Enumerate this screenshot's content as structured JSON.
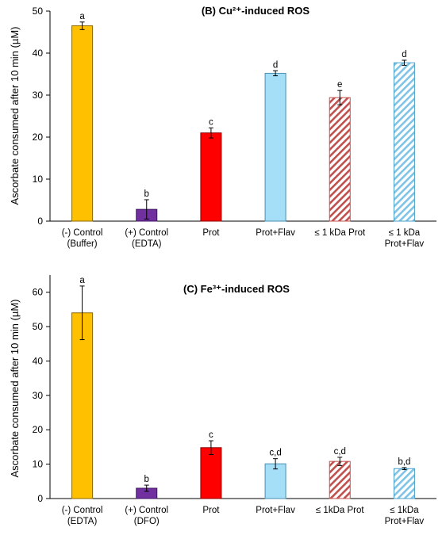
{
  "colors": {
    "gold": "#FFC000",
    "purple": "#7030A0",
    "red": "#FF0000",
    "lightblue": "#A5DEF7",
    "redhatch": "#C0504D",
    "bluehatch": "#7FC4E6"
  },
  "chart_data": [
    {
      "type": "bar",
      "title": "(B) Cu²⁺-induced ROS",
      "ylabel": "Ascorbate consumed after 10 min (µM)",
      "ylim": [
        0,
        50
      ],
      "yticks": [
        0,
        10,
        20,
        30,
        40,
        50
      ],
      "grid": false,
      "categories": [
        [
          "(-) Control",
          "(Buffer)"
        ],
        [
          "(+) Control",
          "(EDTA)"
        ],
        [
          "Prot"
        ],
        [
          "Prot+Flav"
        ],
        [
          "≤ 1 kDa Prot"
        ],
        [
          "≤  1 kDa",
          "Prot+Flav"
        ]
      ],
      "values": [
        46.5,
        2.8,
        21.0,
        35.2,
        29.4,
        37.7
      ],
      "errors": [
        0.9,
        2.3,
        1.2,
        0.6,
        1.7,
        0.6
      ],
      "significance": [
        "a",
        "b",
        "c",
        "d",
        "e",
        "d"
      ],
      "fills": [
        "gold",
        "purple",
        "red",
        "lightblue",
        "redhatch",
        "bluehatch"
      ]
    },
    {
      "type": "bar",
      "title": "(C) Fe³⁺-induced ROS",
      "ylabel": "Ascorbate consumed after 10 min (µM)",
      "ylim": [
        0,
        65
      ],
      "yticks": [
        0,
        10,
        20,
        30,
        40,
        50,
        60
      ],
      "grid": false,
      "categories": [
        [
          "(-) Control",
          "(EDTA)"
        ],
        [
          "(+) Control",
          "(DFO)"
        ],
        [
          "Prot"
        ],
        [
          "Prot+Flav"
        ],
        [
          "≤ 1kDa Prot"
        ],
        [
          "≤ 1kDa",
          "Prot+Flav"
        ]
      ],
      "values": [
        54.0,
        3.0,
        14.8,
        10.1,
        10.8,
        8.7
      ],
      "errors": [
        7.8,
        0.9,
        2.0,
        1.5,
        1.2,
        0.3
      ],
      "significance": [
        "a",
        "b",
        "c",
        "c,d",
        "c,d",
        "b,d"
      ],
      "fills": [
        "gold",
        "purple",
        "red",
        "lightblue",
        "redhatch",
        "bluehatch"
      ]
    }
  ]
}
